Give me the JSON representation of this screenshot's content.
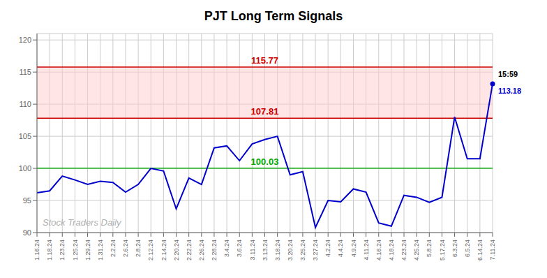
{
  "chart_data": {
    "type": "line",
    "title": "PJT Long Term Signals",
    "categories": [
      "1.16.24",
      "1.18.24",
      "1.23.24",
      "1.25.24",
      "1.29.24",
      "1.31.24",
      "2.2.24",
      "2.6.24",
      "2.8.24",
      "2.12.24",
      "2.14.24",
      "2.20.24",
      "2.22.24",
      "2.26.24",
      "2.28.24",
      "3.4.24",
      "3.6.24",
      "3.11.24",
      "3.13.24",
      "3.18.24",
      "3.20.24",
      "3.25.24",
      "3.27.24",
      "4.2.24",
      "4.4.24",
      "4.9.24",
      "4.11.24",
      "4.16.24",
      "4.18.24",
      "4.23.24",
      "4.25.24",
      "5.8.24",
      "5.17.24",
      "6.3.24",
      "6.5.24",
      "6.14.24",
      "7.11.24"
    ],
    "values": [
      96.2,
      96.5,
      98.8,
      98.2,
      97.5,
      98.0,
      97.8,
      96.3,
      97.5,
      100.0,
      99.6,
      93.7,
      98.5,
      97.5,
      103.2,
      103.5,
      101.2,
      103.8,
      104.5,
      105.0,
      99.0,
      99.5,
      90.8,
      95.0,
      94.8,
      96.8,
      96.3,
      91.5,
      91.0,
      95.8,
      95.5,
      94.7,
      95.5,
      108.0,
      101.5,
      101.5,
      113.18
    ],
    "color": "#0000cc",
    "ylim": [
      90,
      121
    ],
    "yticks": [
      90,
      95,
      100,
      105,
      110,
      115,
      120
    ],
    "grid": true,
    "reference_lines": [
      {
        "value": 100.03,
        "color": "#00aa00"
      },
      {
        "value": 107.81,
        "color": "#cc0000"
      },
      {
        "value": 115.77,
        "color": "#cc0000"
      }
    ],
    "band": {
      "from": 107.81,
      "to": 115.77,
      "color": "#ffcccc"
    },
    "watermark": "Stock Traders Daily",
    "last_point_labels": {
      "time": "15:59",
      "value": "113.18"
    }
  }
}
